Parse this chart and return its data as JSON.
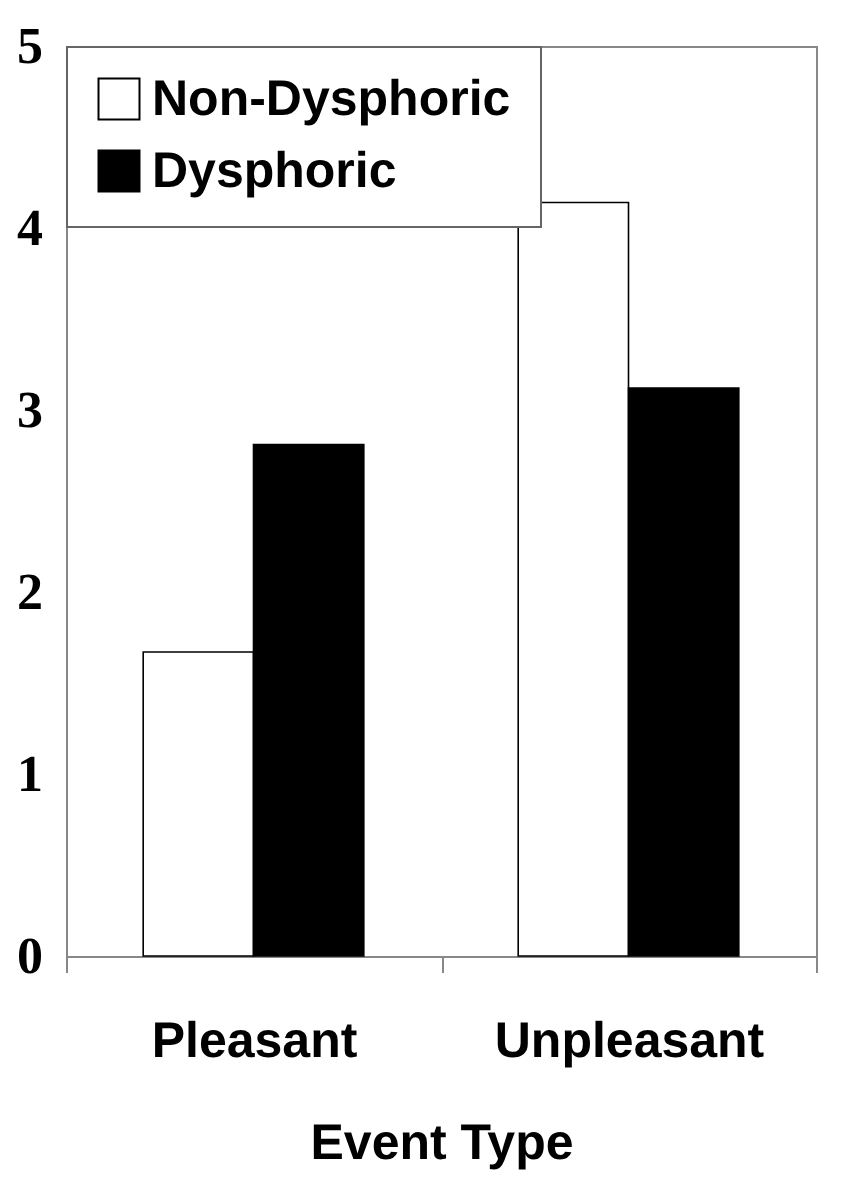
{
  "chart_data": {
    "type": "bar",
    "xlabel": "Event Type",
    "categories": [
      "Pleasant",
      "Unpleasant"
    ],
    "series": [
      {
        "name": "Non-Dysphoric",
        "color": "#ffffff",
        "values": [
          1.67,
          4.14
        ]
      },
      {
        "name": "Dysphoric",
        "color": "#000000",
        "values": [
          2.81,
          3.12
        ]
      }
    ],
    "ylim": [
      0,
      5
    ],
    "yticks": [
      0,
      1,
      2,
      3,
      4,
      5
    ],
    "grid": false,
    "legend": "top left"
  }
}
